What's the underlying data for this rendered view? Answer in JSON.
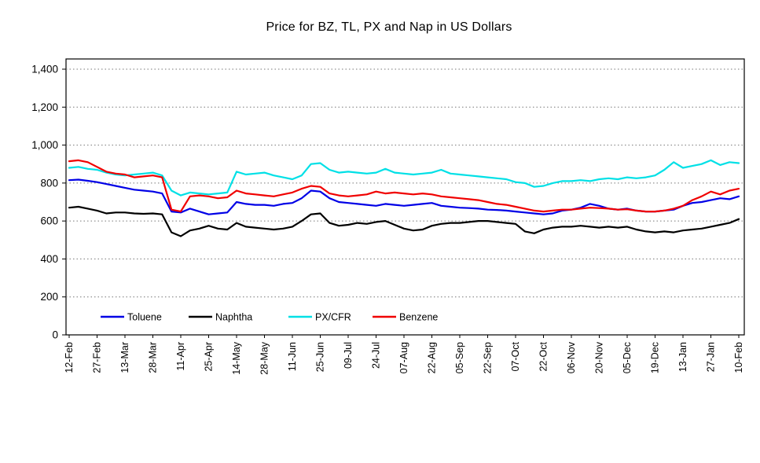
{
  "title": "Price for BZ, TL, PX and Nap in US Dollars",
  "chart_data": {
    "type": "line",
    "title": "Price for BZ, TL, PX and Nap in US Dollars",
    "xlabel": "",
    "ylabel": "",
    "ylim": [
      0,
      1400
    ],
    "y_tick_values": [
      0,
      200,
      400,
      600,
      800,
      1000,
      1200,
      1400
    ],
    "y_tick_labels": [
      "0",
      "200",
      "400",
      "600",
      "800",
      "1,000",
      "1,200",
      "1,400"
    ],
    "x_tick_labels": [
      "12-Feb",
      "27-Feb",
      "13-Mar",
      "28-Mar",
      "11-Apr",
      "25-Apr",
      "14-May",
      "28-May",
      "11-Jun",
      "25-Jun",
      "09-Jul",
      "24-Jul",
      "07-Aug",
      "22-Aug",
      "05-Sep",
      "22-Sep",
      "07-Oct",
      "22-Oct",
      "06-Nov",
      "20-Nov",
      "05-Dec",
      "19-Dec",
      "13-Jan",
      "27-Jan",
      "10-Feb"
    ],
    "points_per_tick_interval": 3,
    "grid": "horizontal-dotted",
    "legend_position": "inside-bottom",
    "series": [
      {
        "name": "Toluene",
        "color": "#0000E6",
        "values": [
          815,
          818,
          812,
          805,
          795,
          785,
          775,
          765,
          760,
          755,
          745,
          650,
          645,
          665,
          650,
          635,
          640,
          645,
          700,
          690,
          685,
          685,
          680,
          690,
          695,
          720,
          760,
          755,
          720,
          700,
          695,
          690,
          685,
          680,
          690,
          685,
          680,
          685,
          690,
          695,
          680,
          675,
          670,
          668,
          665,
          660,
          658,
          655,
          650,
          645,
          640,
          635,
          640,
          655,
          660,
          670,
          690,
          680,
          665,
          660,
          665,
          655,
          650,
          650,
          655,
          660,
          680,
          695,
          700,
          710,
          720,
          715,
          730
        ]
      },
      {
        "name": "Naphtha",
        "color": "#000000",
        "values": [
          670,
          675,
          665,
          655,
          640,
          645,
          645,
          640,
          638,
          640,
          635,
          540,
          520,
          550,
          560,
          575,
          560,
          555,
          590,
          570,
          565,
          560,
          555,
          560,
          570,
          600,
          635,
          640,
          590,
          575,
          580,
          590,
          585,
          595,
          600,
          580,
          560,
          550,
          555,
          575,
          585,
          590,
          590,
          595,
          600,
          600,
          595,
          590,
          585,
          545,
          535,
          555,
          565,
          570,
          570,
          575,
          570,
          565,
          570,
          565,
          570,
          555,
          545,
          540,
          545,
          540,
          550,
          555,
          560,
          570,
          580,
          590,
          610
        ]
      },
      {
        "name": "PX/CFR",
        "color": "#00E0E6",
        "values": [
          880,
          885,
          875,
          870,
          855,
          845,
          840,
          845,
          850,
          855,
          840,
          760,
          735,
          750,
          745,
          740,
          745,
          750,
          860,
          845,
          850,
          855,
          840,
          830,
          820,
          840,
          900,
          905,
          870,
          855,
          860,
          855,
          850,
          855,
          875,
          855,
          850,
          845,
          850,
          855,
          870,
          850,
          845,
          840,
          835,
          830,
          825,
          820,
          805,
          800,
          780,
          785,
          800,
          810,
          810,
          815,
          810,
          820,
          825,
          820,
          830,
          825,
          830,
          840,
          870,
          910,
          880,
          890,
          900,
          920,
          895,
          910,
          905
        ]
      },
      {
        "name": "Benzene",
        "color": "#F00000",
        "values": [
          915,
          920,
          910,
          885,
          860,
          850,
          845,
          830,
          835,
          840,
          830,
          660,
          650,
          730,
          735,
          730,
          720,
          725,
          760,
          745,
          740,
          735,
          730,
          740,
          750,
          770,
          785,
          780,
          745,
          735,
          730,
          735,
          740,
          755,
          745,
          750,
          745,
          740,
          745,
          740,
          730,
          725,
          720,
          715,
          710,
          700,
          690,
          685,
          675,
          665,
          655,
          650,
          655,
          660,
          660,
          665,
          670,
          668,
          665,
          660,
          662,
          655,
          650,
          650,
          655,
          665,
          680,
          710,
          730,
          755,
          740,
          760,
          770
        ]
      }
    ]
  }
}
